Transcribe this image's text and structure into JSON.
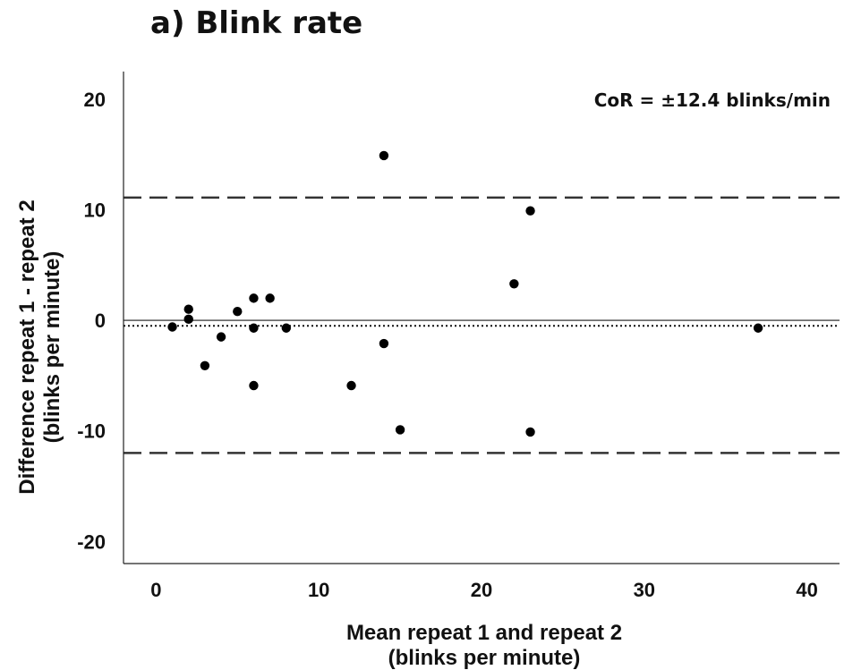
{
  "chart_data": {
    "type": "scatter",
    "title": "a) Blink rate",
    "xlabel": [
      "Mean repeat 1 and repeat 2",
      "(blinks per minute)"
    ],
    "ylabel": [
      "Difference repeat 1 - repeat 2",
      "(blinks per minute)"
    ],
    "xlim": [
      -2,
      42
    ],
    "ylim": [
      -22,
      22.5
    ],
    "xticks": [
      0,
      10,
      20,
      30,
      40
    ],
    "yticks": [
      -20,
      -10,
      0,
      10,
      20
    ],
    "grid": false,
    "annotation": "CoR = ±12.4 blinks/min",
    "reference_lines": {
      "zero": 0,
      "mean_difference": -0.5,
      "upper_limit": 11.1,
      "lower_limit": -12.0
    },
    "points": [
      {
        "x": 1,
        "y": -0.6
      },
      {
        "x": 2,
        "y": 1.0
      },
      {
        "x": 2,
        "y": 0.1
      },
      {
        "x": 3,
        "y": -4.1
      },
      {
        "x": 4,
        "y": -1.5
      },
      {
        "x": 5,
        "y": 0.8
      },
      {
        "x": 6,
        "y": 2.0
      },
      {
        "x": 6,
        "y": -0.7
      },
      {
        "x": 6,
        "y": -5.9
      },
      {
        "x": 7,
        "y": 2.0
      },
      {
        "x": 8,
        "y": -0.7
      },
      {
        "x": 12,
        "y": -5.9
      },
      {
        "x": 14,
        "y": 14.9
      },
      {
        "x": 14,
        "y": -2.1
      },
      {
        "x": 15,
        "y": -9.9
      },
      {
        "x": 22,
        "y": 3.3
      },
      {
        "x": 23,
        "y": 9.9
      },
      {
        "x": 23,
        "y": -10.1
      },
      {
        "x": 37,
        "y": -0.7
      }
    ]
  }
}
